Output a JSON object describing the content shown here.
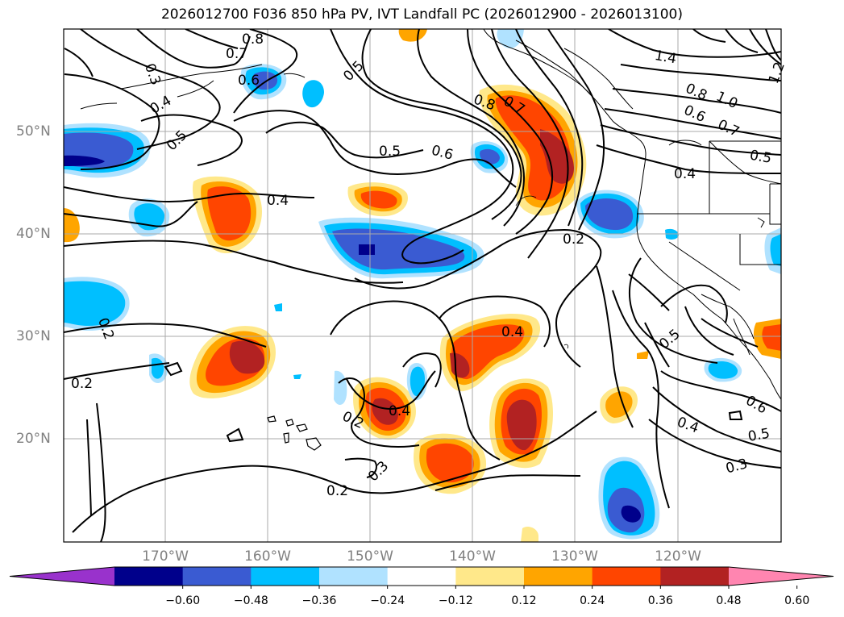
{
  "title": "2026012700 F036 850 hPa PV, IVT Landfall PC (2026012900 - 2026013100)",
  "lon_labels": [
    "170°W",
    "160°W",
    "150°W",
    "140°W",
    "130°W",
    "120°W"
  ],
  "lat_labels": [
    "50°N",
    "40°N",
    "30°N",
    "20°N"
  ],
  "contour_labels": [
    "0.8",
    "0.7",
    "0.6",
    "0.3",
    "0.4",
    "0.5",
    "0.5",
    "0.4",
    "0.5",
    "0.6",
    "0.8",
    "0.7",
    "0.2",
    "0.4",
    "0.2",
    "0.2",
    "0.4",
    "0.2",
    "0.3",
    "0.2",
    "0.5",
    "0.6",
    "0.4",
    "0.5",
    "0.3",
    "1.4",
    "1.2",
    "0.8",
    "1.0",
    "0.6",
    "0.7",
    "0.5",
    "0.4"
  ],
  "colorbar": {
    "tick_labels": [
      "−0.60",
      "−0.48",
      "−0.36",
      "−0.24",
      "−0.12",
      "0.12",
      "0.24",
      "0.36",
      "0.48",
      "0.60"
    ],
    "colors": [
      "#9932cc",
      "#00008b",
      "#3a5bd2",
      "#00bfff",
      "#b0e2ff",
      "#ffffff",
      "#ffe88a",
      "#ffa500",
      "#ff4500",
      "#b22222",
      "#ff85b0"
    ]
  },
  "colors": {
    "contour": "#000000",
    "grid": "#a9a9a9",
    "coast": "#000000"
  }
}
